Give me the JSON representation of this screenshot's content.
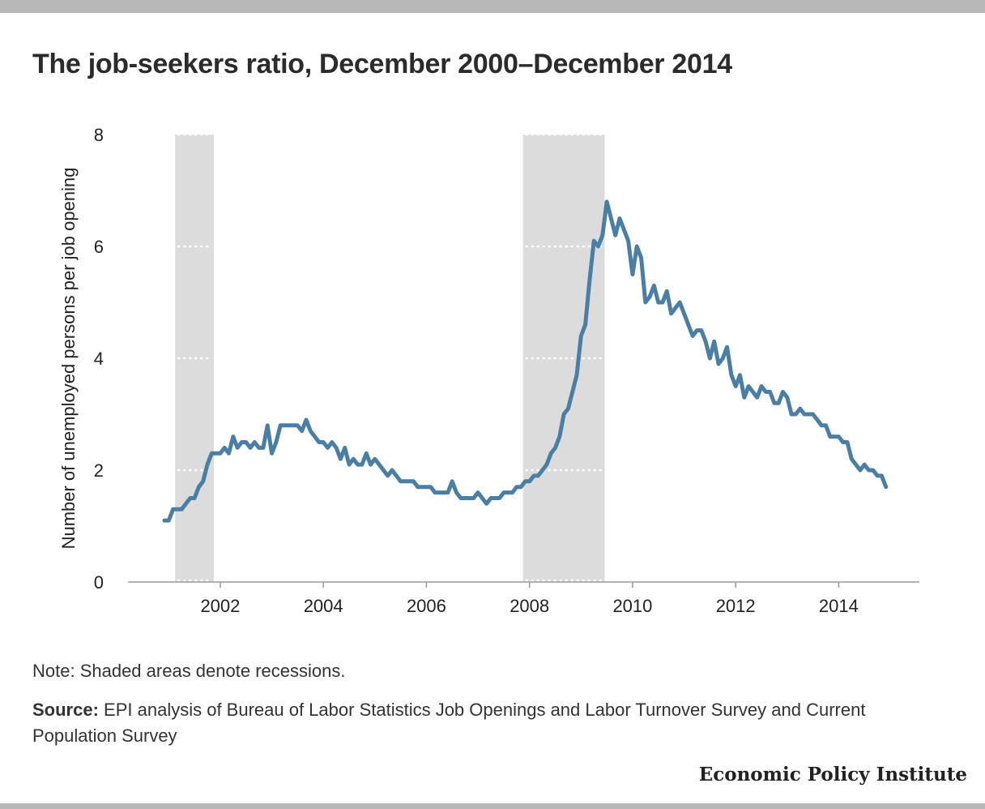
{
  "title": "The job-seekers ratio, December 2000–December 2014",
  "note": "Note: Shaded areas denote recessions.",
  "source_label": "Source:",
  "source_text": "EPI analysis of Bureau of Labor Statistics Job Openings and Labor Turnover Survey and Current Population Survey",
  "brand": "Economic Policy Institute",
  "colors": {
    "line": "#4a7fa5",
    "recession": "#dcdcdc",
    "top_bar": "#b9b9b9"
  },
  "chart_data": {
    "type": "line",
    "title": "The job-seekers ratio, December 2000–December 2014",
    "xlabel": "",
    "ylabel": "Number of unemployed persons per job opening",
    "ylim": [
      0,
      8
    ],
    "xlim": [
      "2000-12",
      "2014-12"
    ],
    "yticks": [
      0,
      2,
      4,
      6,
      8
    ],
    "xticks": [
      "2002",
      "2004",
      "2006",
      "2008",
      "2010",
      "2012",
      "2014"
    ],
    "grid": "dotted white gridlines visible only within recession bands",
    "legend": "none",
    "recessions": [
      {
        "start": "2001-03",
        "end": "2001-11"
      },
      {
        "start": "2007-12",
        "end": "2009-06"
      }
    ],
    "series": [
      {
        "start": "2000-12",
        "frequency": "monthly",
        "values": [
          1.1,
          1.1,
          1.3,
          1.3,
          1.3,
          1.4,
          1.5,
          1.5,
          1.7,
          1.8,
          2.1,
          2.3,
          2.3,
          2.3,
          2.4,
          2.3,
          2.6,
          2.4,
          2.5,
          2.5,
          2.4,
          2.5,
          2.4,
          2.4,
          2.8,
          2.3,
          2.5,
          2.8,
          2.8,
          2.8,
          2.8,
          2.8,
          2.7,
          2.9,
          2.7,
          2.6,
          2.5,
          2.5,
          2.4,
          2.5,
          2.4,
          2.2,
          2.4,
          2.1,
          2.2,
          2.1,
          2.1,
          2.3,
          2.1,
          2.2,
          2.1,
          2.0,
          1.9,
          2.0,
          1.9,
          1.8,
          1.8,
          1.8,
          1.8,
          1.7,
          1.7,
          1.7,
          1.7,
          1.6,
          1.6,
          1.6,
          1.6,
          1.8,
          1.6,
          1.5,
          1.5,
          1.5,
          1.5,
          1.6,
          1.5,
          1.4,
          1.5,
          1.5,
          1.5,
          1.6,
          1.6,
          1.6,
          1.7,
          1.7,
          1.8,
          1.8,
          1.9,
          1.9,
          2.0,
          2.1,
          2.3,
          2.4,
          2.6,
          3.0,
          3.1,
          3.4,
          3.7,
          4.4,
          4.6,
          5.4,
          6.1,
          6.0,
          6.2,
          6.8,
          6.5,
          6.2,
          6.5,
          6.3,
          6.1,
          5.5,
          6.0,
          5.8,
          5.0,
          5.1,
          5.3,
          5.0,
          5.0,
          5.2,
          4.8,
          4.9,
          5.0,
          4.8,
          4.6,
          4.4,
          4.5,
          4.5,
          4.3,
          4.0,
          4.3,
          3.9,
          4.0,
          4.2,
          3.7,
          3.5,
          3.7,
          3.3,
          3.5,
          3.4,
          3.3,
          3.5,
          3.4,
          3.4,
          3.2,
          3.2,
          3.4,
          3.3,
          3.0,
          3.0,
          3.1,
          3.0,
          3.0,
          3.0,
          2.9,
          2.8,
          2.8,
          2.6,
          2.6,
          2.6,
          2.5,
          2.5,
          2.2,
          2.1,
          2.0,
          2.1,
          2.0,
          2.0,
          1.9,
          1.9,
          1.7
        ]
      }
    ]
  }
}
